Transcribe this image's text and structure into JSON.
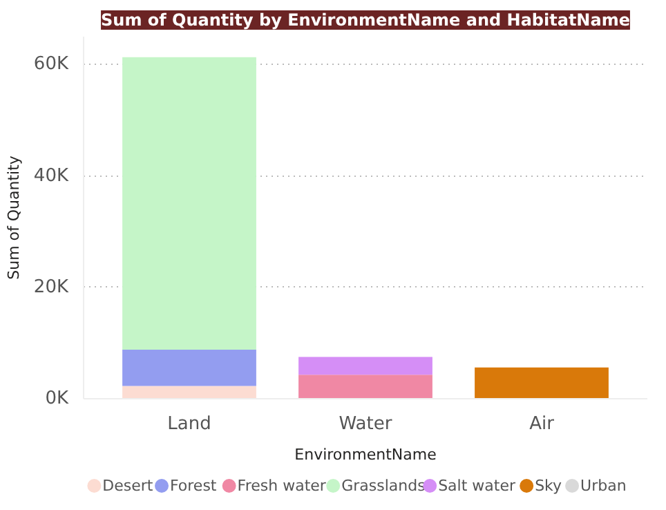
{
  "chart_data": {
    "type": "bar",
    "stacked": true,
    "title": "Sum of Quantity by EnvironmentName and HabitatName",
    "xlabel": "EnvironmentName",
    "ylabel": "Sum of Quantity",
    "categories": [
      "Land",
      "Water",
      "Air"
    ],
    "series": [
      {
        "name": "Desert",
        "color": "#fcdcd2",
        "values": [
          2300,
          null,
          null
        ]
      },
      {
        "name": "Forest",
        "color": "#939df0",
        "values": [
          6500,
          null,
          null
        ]
      },
      {
        "name": "Fresh water",
        "color": "#f088a4",
        "values": [
          null,
          4300,
          null
        ]
      },
      {
        "name": "Grasslands",
        "color": "#c5f5c8",
        "values": [
          52500,
          null,
          null
        ]
      },
      {
        "name": "Salt water",
        "color": "#d58ef6",
        "values": [
          null,
          3200,
          null
        ]
      },
      {
        "name": "Sky",
        "color": "#d9790a",
        "values": [
          null,
          null,
          5600
        ]
      },
      {
        "name": "Urban",
        "color": "#d9d9d9",
        "values": [
          null,
          null,
          null
        ]
      }
    ],
    "ylim": [
      0,
      65000
    ],
    "yticks": [
      {
        "value": 0,
        "label": "0K"
      },
      {
        "value": 20000,
        "label": "20K"
      },
      {
        "value": 40000,
        "label": "40K"
      },
      {
        "value": 60000,
        "label": "60K"
      }
    ],
    "grid": "y",
    "legend": "bottom"
  }
}
